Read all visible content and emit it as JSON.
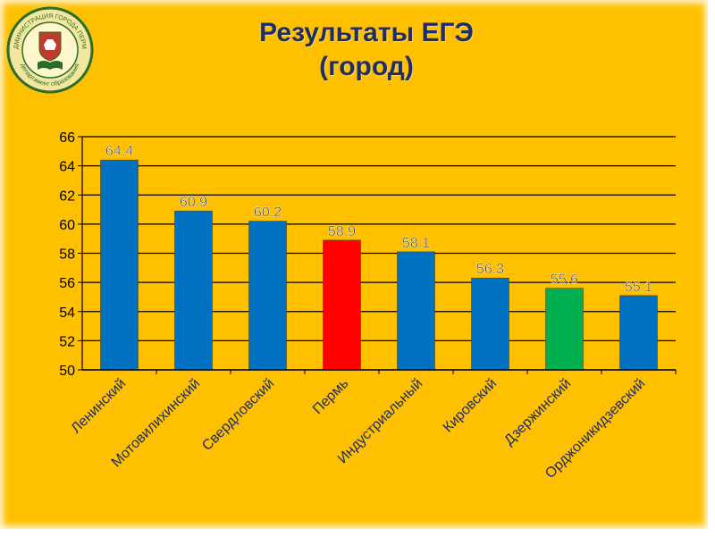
{
  "title_line1": "Результаты ЕГЭ",
  "title_line2": "(город)",
  "logo": {
    "text_top": "АДМИНИСТРАЦИЯ ГОРОДА ПЕРМИ",
    "text_bottom": "департамент образования",
    "ring_color": "#2a6d2a",
    "emblem_color": "#c0392b"
  },
  "chart_data": {
    "type": "bar",
    "categories": [
      "Ленинский",
      "Мотовилихинский",
      "Свердловский",
      "Пермь",
      "Индустриальный",
      "Кировский",
      "Дзержинский",
      "Орджоникидзевский"
    ],
    "values": [
      64.4,
      60.9,
      60.2,
      58.9,
      58.1,
      56.3,
      55.6,
      55.1
    ],
    "value_labels": [
      "64.4",
      "60.9",
      "60.2",
      "58.9",
      "58.1",
      "56.3",
      "55.6",
      "55.1"
    ],
    "colors": [
      "#0070c0",
      "#0070c0",
      "#0070c0",
      "#ff0000",
      "#0070c0",
      "#0070c0",
      "#00b050",
      "#0070c0"
    ],
    "ylim": [
      50,
      66
    ],
    "yticks": [
      "50",
      "52",
      "54",
      "56",
      "58",
      "60",
      "62",
      "64",
      "66"
    ],
    "grid": true,
    "title": "",
    "xlabel": "",
    "ylabel": ""
  }
}
